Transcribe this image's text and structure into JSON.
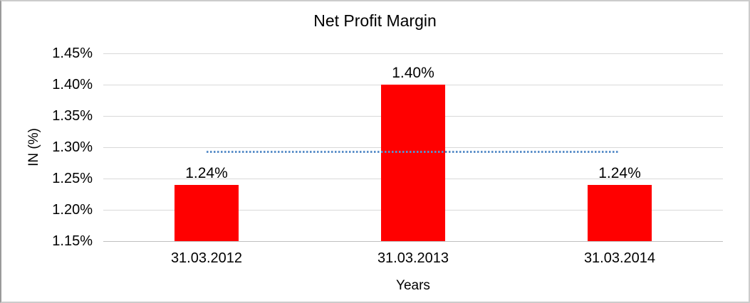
{
  "window": {
    "background": "#ffffff",
    "border_color": "#bbbbbb"
  },
  "chart_data": {
    "type": "bar",
    "title": "Net Profit Margin",
    "xlabel": "Years",
    "ylabel": "IN (%)",
    "categories": [
      "31.03.2012",
      "31.03.2013",
      "31.03.2014"
    ],
    "values": [
      1.24,
      1.4,
      1.24
    ],
    "data_labels": [
      "1.24%",
      "1.40%",
      "1.24%"
    ],
    "y_ticks": [
      "1.45%",
      "1.40%",
      "1.35%",
      "1.30%",
      "1.25%",
      "1.20%",
      "1.15%"
    ],
    "y_tick_values": [
      1.45,
      1.4,
      1.35,
      1.3,
      1.25,
      1.2,
      1.15
    ],
    "ylim": [
      1.15,
      1.45
    ],
    "grid": true,
    "legend": false,
    "bar_color": "#ff0000",
    "gridline_color": "#d9d9d9",
    "axisline_color": "#c0c0c0",
    "text_color": "#000000",
    "trendline": {
      "style": "dotted",
      "color": "#5b8fc9",
      "value": 1.293,
      "spans": "first bar center to last bar center"
    }
  }
}
